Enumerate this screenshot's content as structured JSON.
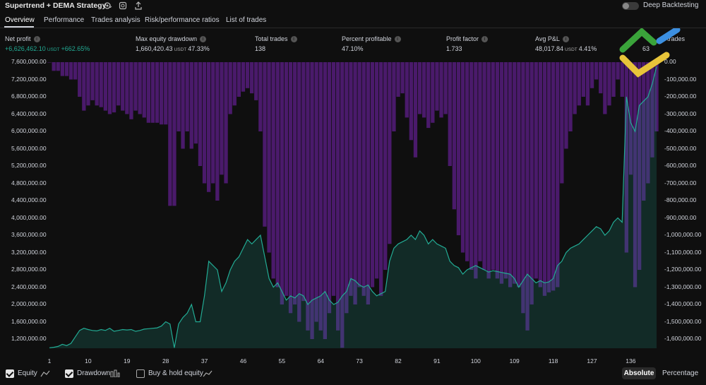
{
  "header": {
    "title": "Supertrend + DEMA Strategy",
    "deep_backtesting_label": "Deep Backtesting"
  },
  "tabs": [
    {
      "label": "Overview"
    },
    {
      "label": "Performance"
    },
    {
      "label": "Trades analysis"
    },
    {
      "label": "Risk/performance ratios"
    },
    {
      "label": "List of trades"
    }
  ],
  "metrics": {
    "net_profit": {
      "label": "Net profit",
      "value": "+6,626,462.10",
      "unit": "USDT",
      "extra": "+662.65%"
    },
    "max_drawdown": {
      "label": "Max equity drawdown",
      "value": "1,660,420.43",
      "unit": "USDT",
      "extra": "47.33%"
    },
    "total_trades": {
      "label": "Total trades",
      "value": "138"
    },
    "percent_profitable": {
      "label": "Percent profitable",
      "value": "47.10%"
    },
    "profit_factor": {
      "label": "Profit factor",
      "value": "1.733"
    },
    "avg_pl": {
      "label": "Avg P&L",
      "value": "48,017.84",
      "unit": "USDT",
      "extra": "4.41%"
    },
    "avg_bars": {
      "label": "...n trades",
      "value": "63"
    }
  },
  "chart_data": {
    "type": "area",
    "left_axis_ticks": [
      "7,600,000.00",
      "7,200,000.00",
      "6,800,000.00",
      "6,400,000.00",
      "6,000,000.00",
      "5,600,000.00",
      "5,200,000.00",
      "4,800,000.00",
      "4,400,000.00",
      "4,000,000.00",
      "3,600,000.00",
      "3,200,000.00",
      "2,800,000.00",
      "2,400,000.00",
      "2,000,000.00",
      "1,600,000.00",
      "1,200,000.00"
    ],
    "right_axis_ticks": [
      "0.00",
      "-100,000.00",
      "-200,000.00",
      "-300,000.00",
      "-400,000.00",
      "-500,000.00",
      "-600,000.00",
      "-700,000.00",
      "-800,000.00",
      "-900,000.00",
      "-1,000,000.00",
      "-1,100,000.00",
      "-1,200,000.00",
      "-1,300,000.00",
      "-1,400,000.00",
      "-1,500,000.00",
      "-1,600,000.00"
    ],
    "x_ticks": [
      "1",
      "10",
      "19",
      "28",
      "37",
      "46",
      "55",
      "64",
      "73",
      "82",
      "91",
      "100",
      "109",
      "118",
      "127",
      "136"
    ],
    "equity": [
      1000000,
      1010000,
      1030000,
      1080000,
      1050000,
      1100000,
      1250000,
      1400000,
      1450000,
      1420000,
      1400000,
      1390000,
      1420000,
      1400000,
      1450000,
      1380000,
      1400000,
      1420000,
      1410000,
      1420000,
      1380000,
      1400000,
      1430000,
      1440000,
      1450000,
      1460000,
      1500000,
      1600000,
      1550000,
      1000000,
      1550000,
      1700000,
      1800000,
      2000000,
      1600000,
      1600000,
      2200000,
      3000000,
      2900000,
      2800000,
      2300000,
      2500000,
      2800000,
      3000000,
      3100000,
      3300000,
      3500000,
      3400000,
      3500000,
      3600000,
      3100000,
      2600000,
      2400000,
      2500000,
      2300000,
      2100000,
      2200000,
      2150000,
      2250000,
      2200000,
      2000000,
      2100000,
      2150000,
      2200000,
      2300000,
      2100000,
      2000000,
      2050000,
      2200000,
      2300000,
      2600000,
      2550000,
      2450000,
      2400000,
      2450000,
      2300000,
      2200000,
      2250000,
      2300000,
      3000000,
      3300000,
      3400000,
      3450000,
      3500000,
      3600000,
      3500000,
      3700000,
      3600000,
      3400000,
      3500000,
      3400000,
      3350000,
      3300000,
      3000000,
      2900000,
      2850000,
      2700000,
      2800000,
      2850000,
      2900000,
      2850000,
      2800000,
      2750000,
      2780000,
      2760000,
      2740000,
      2720000,
      2700000,
      2600000,
      2400000,
      2550000,
      2700000,
      2600000,
      2500000,
      2550000,
      2500000,
      2520000,
      2600000,
      2900000,
      3000000,
      3200000,
      3300000,
      3350000,
      3400000,
      3500000,
      3600000,
      3700000,
      3800000,
      3750000,
      3600000,
      3700000,
      3900000,
      4000000,
      3900000,
      6800000,
      6200000,
      6000000,
      6600000,
      6700000,
      6800000,
      7100000,
      7500000
    ],
    "drawdown": [
      0,
      -50000,
      -50000,
      -80000,
      -80000,
      -100000,
      -100000,
      -200000,
      -280000,
      -250000,
      -220000,
      -250000,
      -260000,
      -280000,
      -300000,
      -290000,
      -250000,
      -280000,
      -300000,
      -330000,
      -280000,
      -300000,
      -320000,
      -350000,
      -350000,
      -350000,
      -360000,
      -360000,
      -830000,
      -830000,
      -400000,
      -500000,
      -400000,
      -500000,
      -470000,
      -600000,
      -700000,
      -750000,
      -700000,
      -800000,
      -650000,
      -700000,
      -300000,
      -250000,
      -200000,
      -170000,
      -150000,
      -180000,
      -220000,
      -400000,
      -950000,
      -1100000,
      -1250000,
      -1300000,
      -1400000,
      -1350000,
      -1450000,
      -1400000,
      -1500000,
      -1380000,
      -1550000,
      -1600000,
      -1500000,
      -1550000,
      -1600000,
      -1450000,
      -1350000,
      -1550000,
      -1650000,
      -1450000,
      -1350000,
      -1400000,
      -1300000,
      -1350000,
      -1400000,
      -1300000,
      -1250000,
      -1350000,
      -1200000,
      -1050000,
      -400000,
      -200000,
      -180000,
      -320000,
      -450000,
      -550000,
      -300000,
      -320000,
      -380000,
      -350000,
      -280000,
      -320000,
      -300000,
      -600000,
      -850000,
      -1000000,
      -1100000,
      -1150000,
      -1200000,
      -1250000,
      -1150000,
      -1200000,
      -1250000,
      -1200000,
      -1250000,
      -1280000,
      -1250000,
      -1300000,
      -1280000,
      -1300000,
      -1450000,
      -1550000,
      -1400000,
      -1250000,
      -1300000,
      -1350000,
      -1330000,
      -1320000,
      -1300000,
      -700000,
      -500000,
      -400000,
      -300000,
      -250000,
      -200000,
      -250000,
      -150000,
      -100000,
      -180000,
      -300000,
      -250000,
      -200000,
      -100000,
      -200000,
      -1100000,
      -650000,
      -1300000,
      -1200000,
      -800000,
      -700000,
      -550000,
      -400000
    ]
  },
  "legend": {
    "equity_label": "Equity",
    "drawdown_label": "Drawdown",
    "buyhold_label": "Buy & hold equity",
    "absolute_label": "Absolute",
    "percentage_label": "Percentage"
  },
  "colors": {
    "equity_line": "#22ab94",
    "drawdown_bar": "#4a1a6b",
    "background": "#0f0f0f"
  }
}
